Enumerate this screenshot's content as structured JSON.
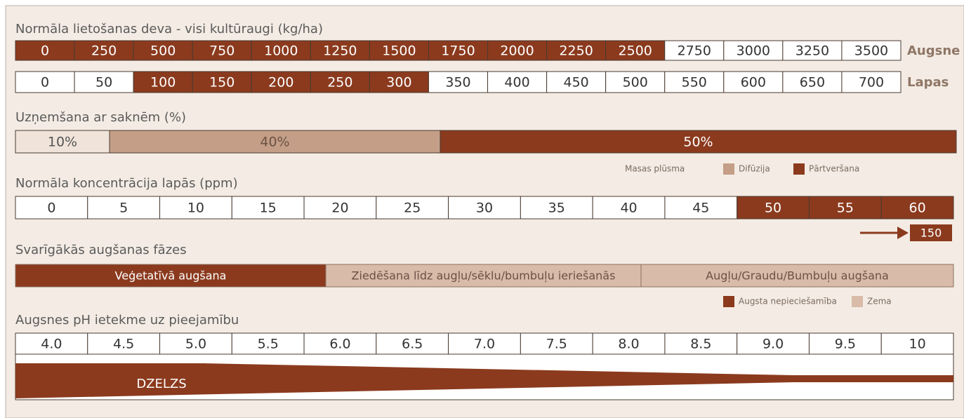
{
  "sections": {
    "dose": {
      "title": "Normāla lietošanas deva - visi kultūraugi (kg/ha)",
      "rows": [
        {
          "label": "Augsne",
          "cells": [
            "0",
            "250",
            "500",
            "750",
            "1000",
            "1250",
            "1500",
            "1750",
            "2000",
            "2250",
            "2500",
            "2750",
            "3000",
            "3250",
            "3500"
          ]
        },
        {
          "label": "Lapas",
          "cells": [
            "0",
            "50",
            "100",
            "150",
            "200",
            "250",
            "300",
            "350",
            "400",
            "450",
            "500",
            "550",
            "600",
            "650",
            "700"
          ]
        }
      ]
    },
    "uptake": {
      "title": "Uzņemšana ar saknēm (%)",
      "segments": [
        "10%",
        "40%",
        "50%"
      ],
      "legend": [
        "Masas plūsma",
        "Difūzija",
        "Pārtveršana"
      ]
    },
    "concentration": {
      "title": "Normāla koncentrācija lapās (ppm)",
      "cells": [
        "0",
        "5",
        "10",
        "15",
        "20",
        "25",
        "30",
        "35",
        "40",
        "45",
        "50",
        "55",
        "60"
      ],
      "overflow": "150"
    },
    "phases": {
      "title": "Svarīgākās augšanas fāzes",
      "segments": [
        "Veģetatīvā augšana",
        "Ziedēšana līdz augļu/sēklu/bumbuļu ieriešanās",
        "Augļu/Graudu/Bumbuļu augšana"
      ],
      "legend": [
        "Augsta nepieciešamība",
        "Zema"
      ]
    },
    "ph": {
      "title": "Augsnes pH ietekme uz pieejamību",
      "cells": [
        "4.0",
        "4.5",
        "5.0",
        "5.5",
        "6.0",
        "6.5",
        "7.0",
        "7.5",
        "8.0",
        "8.5",
        "9.0",
        "9.5",
        "10"
      ],
      "element": "DZELZS"
    }
  }
}
